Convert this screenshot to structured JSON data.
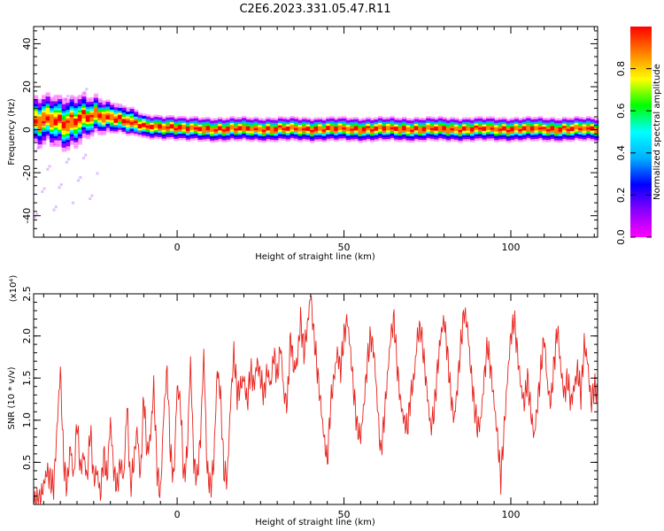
{
  "title": "C2E6.2023.331.05.47.R11",
  "chart_data": [
    {
      "type": "heatmap",
      "xlabel": "Height of straight line (km)",
      "ylabel": "Frequency (Hz)",
      "xlim": [
        -43,
        126
      ],
      "ylim": [
        -50,
        48
      ],
      "x_ticks": [
        "0",
        "50",
        "100"
      ],
      "y_ticks": [
        "-40",
        "-20",
        "0",
        "20",
        "40"
      ],
      "ridge": {
        "x": [
          -42,
          -38,
          -34,
          -30,
          -26,
          -22,
          -18,
          -14,
          -10,
          -6,
          -2,
          2,
          10,
          20,
          30,
          40,
          50,
          60,
          70,
          80,
          90,
          100,
          110,
          120,
          126
        ],
        "freq_hz": [
          3,
          4,
          3,
          5,
          5,
          6,
          5,
          3,
          1,
          1,
          1,
          0,
          0,
          0,
          0,
          0,
          0,
          0,
          0,
          0,
          0,
          0,
          0,
          0,
          0
        ],
        "halfwidth_hz": [
          8,
          8,
          9,
          8,
          6,
          5,
          4,
          4,
          3,
          3,
          3,
          3,
          3,
          3,
          3,
          3,
          3,
          3,
          3,
          3,
          3,
          3,
          3,
          3,
          3
        ]
      },
      "colorbar": {
        "label": "Normalized spectral amplitude",
        "range": [
          0,
          1
        ],
        "ticks": [
          "0.0",
          "0.2",
          "0.4",
          "0.6",
          "0.8"
        ],
        "colormap": [
          "#ff00ff",
          "#8a00ff",
          "#0000ff",
          "#00b0ff",
          "#00ffff",
          "#00ff00",
          "#ffff00",
          "#ff8000",
          "#ff0000"
        ]
      },
      "grid": false
    },
    {
      "type": "line",
      "xlabel": "Height of straight line (km)",
      "ylabel": "SNR (10 * v/v)",
      "y_multiplier": "(x10⁴)",
      "xlim": [
        -43,
        126
      ],
      "ylim": [
        0,
        2.5
      ],
      "x_ticks": [
        "0",
        "50",
        "100"
      ],
      "y_ticks": [
        "0.5",
        "1.0",
        "1.5",
        "2.0",
        "2.5"
      ],
      "color": "#e8201a",
      "series": [
        {
          "x": [
            -43,
            -41,
            -39,
            -37,
            -35,
            -34,
            -33,
            -32,
            -31,
            -30,
            -29,
            -28,
            -27,
            -26,
            -25,
            -24,
            -23,
            -22,
            -21,
            -20,
            -19,
            -18,
            -17,
            -16,
            -15,
            -14,
            -13,
            -12,
            -11,
            -10,
            -9,
            -8,
            -7,
            -6,
            -5,
            -4,
            -3,
            -2,
            -1,
            0,
            1,
            2,
            3,
            4,
            5,
            6,
            7,
            8,
            9,
            10,
            11,
            12,
            13,
            14,
            15,
            16,
            17,
            18,
            19,
            20,
            21,
            22,
            23,
            24,
            25,
            26,
            27,
            28,
            29,
            30,
            31,
            32,
            33,
            34,
            35,
            36,
            37,
            38,
            39,
            40,
            41,
            42,
            43,
            44,
            45,
            46,
            47,
            48,
            49,
            50,
            51,
            52,
            53,
            54,
            55,
            56,
            57,
            58,
            59,
            60,
            61,
            62,
            63,
            64,
            65,
            66,
            67,
            68,
            69,
            70,
            71,
            72,
            73,
            74,
            75,
            76,
            77,
            78,
            79,
            80,
            81,
            82,
            83,
            84,
            85,
            86,
            87,
            88,
            89,
            90,
            91,
            92,
            93,
            94,
            95,
            96,
            97,
            98,
            99,
            100,
            101,
            102,
            103,
            104,
            105,
            106,
            107,
            108,
            109,
            110,
            111,
            112,
            113,
            114,
            115,
            116,
            117,
            118,
            119,
            120,
            121,
            122,
            123,
            124,
            125,
            126
          ],
          "y": [
            0.02,
            0.05,
            0.4,
            0.2,
            1.6,
            0.5,
            0.2,
            0.7,
            0.3,
            1.0,
            0.4,
            0.6,
            0.3,
            0.9,
            0.3,
            0.4,
            0.1,
            0.6,
            0.3,
            1.0,
            0.4,
            0.2,
            0.5,
            0.3,
            1.2,
            0.2,
            0.5,
            0.9,
            0.3,
            1.3,
            0.6,
            0.8,
            1.4,
            0.4,
            0.1,
            1.1,
            1.6,
            0.6,
            0.3,
            1.4,
            1.2,
            0.3,
            0.6,
            1.7,
            0.5,
            0.3,
            0.8,
            1.8,
            0.4,
            0.2,
            0.5,
            1.6,
            1.3,
            0.4,
            0.3,
            1.2,
            1.8,
            1.3,
            1.4,
            1.5,
            1.2,
            1.6,
            1.4,
            1.7,
            1.5,
            1.3,
            1.6,
            1.4,
            1.8,
            1.5,
            1.9,
            1.3,
            1.2,
            2.0,
            1.6,
            1.7,
            2.2,
            1.8,
            2.1,
            2.5,
            2.0,
            1.6,
            1.2,
            0.8,
            0.5,
            1.2,
            1.5,
            1.8,
            1.6,
            2.0,
            2.2,
            1.8,
            1.3,
            0.9,
            0.8,
            1.2,
            1.7,
            2.0,
            1.8,
            1.2,
            0.6,
            1.0,
            1.5,
            2.0,
            2.2,
            1.6,
            1.2,
            1.0,
            0.9,
            1.3,
            1.5,
            2.0,
            2.1,
            1.7,
            1.3,
            0.9,
            1.1,
            1.6,
            2.0,
            2.2,
            1.8,
            1.3,
            1.0,
            1.4,
            1.9,
            2.3,
            2.1,
            1.6,
            1.2,
            0.9,
            1.0,
            1.5,
            1.9,
            1.6,
            1.2,
            0.8,
            0.3,
            0.9,
            1.5,
            2.0,
            2.2,
            1.8,
            1.4,
            1.2,
            1.5,
            1.1,
            0.8,
            1.2,
            1.6,
            2.0,
            1.4,
            1.2,
            1.7,
            2.1,
            1.6,
            1.3,
            1.5,
            1.2,
            1.4,
            1.6,
            1.3,
            1.9,
            1.7,
            1.2,
            1.4,
            1.3
          ]
        }
      ],
      "grid": false
    }
  ]
}
